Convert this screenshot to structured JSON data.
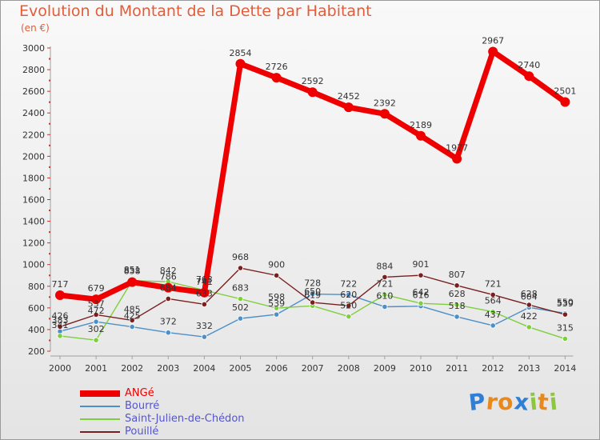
{
  "chart_data": {
    "type": "line",
    "title": "Evolution du Montant de la Dette par Habitant",
    "subtitle": "(en €)",
    "categories": [
      "2000",
      "2001",
      "2002",
      "2003",
      "2004",
      "2005",
      "2006",
      "2007",
      "2008",
      "2009",
      "2010",
      "2011",
      "2012",
      "2013",
      "2014"
    ],
    "ylim": [
      200,
      3000
    ],
    "yticks": [
      200,
      400,
      600,
      800,
      1000,
      1200,
      1400,
      1600,
      1800,
      2000,
      2200,
      2400,
      2600,
      2800,
      3000
    ],
    "grid": false,
    "legend_position": "bottom-left",
    "series": [
      {
        "name": "ANGé",
        "color": "#ee0000",
        "emphasis": true,
        "values": [
          717,
          679,
          838,
          786,
          741,
          2854,
          2726,
          2592,
          2452,
          2392,
          2189,
          1977,
          2967,
          2740,
          2501
        ]
      },
      {
        "name": "Bourré",
        "color": "#4d8fc8",
        "values": [
          383,
          472,
          425,
          372,
          332,
          502,
          539,
          728,
          722,
          610,
          616,
          518,
          437,
          604,
          550
        ]
      },
      {
        "name": "Saint-Julien-de-Chédon",
        "color": "#7ecf3e",
        "values": [
          341,
          302,
          851,
          842,
          763,
          683,
          598,
          619,
          520,
          721,
          642,
          628,
          564,
          422,
          315
        ]
      },
      {
        "name": "Pouillé",
        "color": "#7a1f1f",
        "values": [
          426,
          537,
          485,
          684,
          633,
          968,
          900,
          650,
          620,
          884,
          901,
          807,
          721,
          628,
          539
        ]
      }
    ]
  },
  "logo": {
    "letters": [
      "P",
      "r",
      "o",
      "x",
      "i",
      "t",
      "i"
    ]
  }
}
